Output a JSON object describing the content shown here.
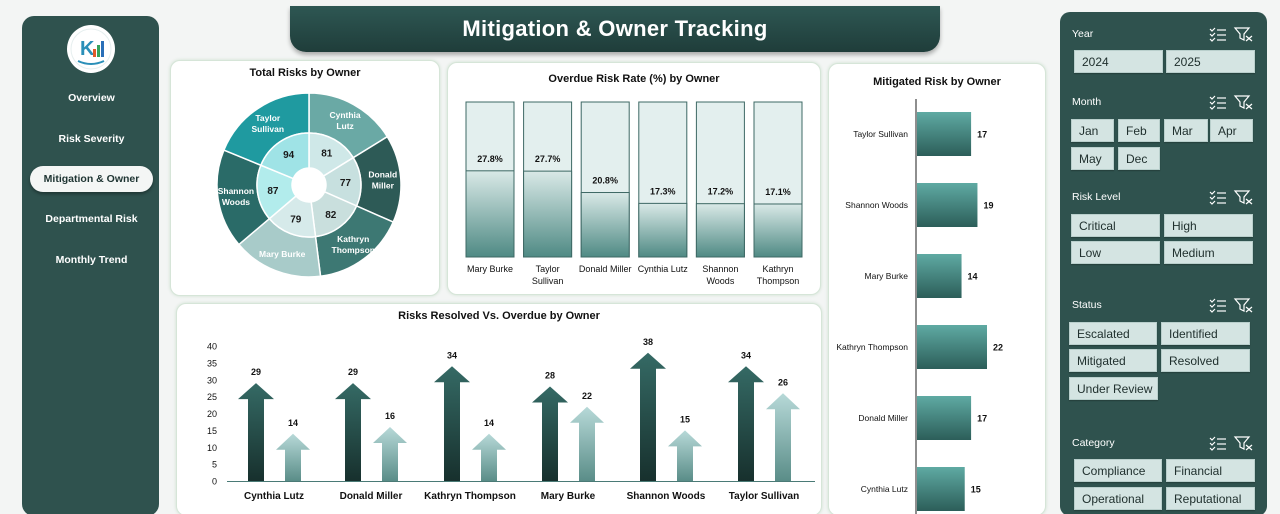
{
  "nav": {
    "items": [
      "Overview",
      "Risk Severity",
      "Mitigation & Owner",
      "Departmental Risk",
      "Monthly Trend"
    ],
    "active": "Mitigation & Owner"
  },
  "header": {
    "title": "Mitigation & Owner Tracking"
  },
  "panels": {
    "total_risks": "Total Risks by Owner",
    "overdue_rate": "Overdue Risk Rate (%) by Owner",
    "mitigated": "Mitigated Risk by Owner",
    "resolved_vs_overdue": "Risks Resolved Vs. Overdue by Owner"
  },
  "filters": {
    "year": {
      "label": "Year",
      "options": [
        "2024",
        "2025"
      ]
    },
    "month": {
      "label": "Month",
      "options": [
        "Jan",
        "Feb",
        "Mar",
        "Apr",
        "May",
        "Dec"
      ]
    },
    "risk_level": {
      "label": "Risk Level",
      "options": [
        "Critical",
        "High",
        "Low",
        "Medium"
      ]
    },
    "status": {
      "label": "Status",
      "options": [
        "Escalated",
        "Identified",
        "Mitigated",
        "Resolved",
        "Under Review"
      ]
    },
    "category": {
      "label": "Category",
      "options": [
        "Compliance",
        "Financial",
        "Operational",
        "Reputational"
      ]
    }
  },
  "colors": {
    "sidebar": "#2f524e",
    "accent_dark": "#1f3d3a",
    "teal": "#4a9690",
    "teal_light": "#9edfe2"
  },
  "icons": [
    "logo-icon",
    "multi-select-icon",
    "clear-filter-icon"
  ],
  "chart_data": [
    {
      "type": "pie",
      "subtype": "sunburst",
      "title": "Total Risks by Owner",
      "categories": [
        "Cynthia Lutz",
        "Donald Miller",
        "Kathryn Thompson",
        "Mary Burke",
        "Shannon Woods",
        "Taylor Sullivan"
      ],
      "values": [
        81,
        77,
        82,
        79,
        87,
        94
      ],
      "outer_labels": [
        "Cynthia\nLutz",
        "Donald\nMiller",
        "Kathryn\nThompson",
        "Mary Burke",
        "Shannon\nWoods",
        "Taylor\nSullivan"
      ]
    },
    {
      "type": "bar",
      "title": "Overdue Risk Rate (%) by Owner",
      "categories": [
        "Mary Burke",
        "Taylor Sullivan",
        "Donald Miller",
        "Cynthia Lutz",
        "Shannon Woods",
        "Kathryn Thompson"
      ],
      "values": [
        27.8,
        27.7,
        20.8,
        17.3,
        17.2,
        17.1
      ],
      "labels": [
        "27.8%",
        "27.7%",
        "20.8%",
        "17.3%",
        "17.2%",
        "17.1%"
      ],
      "ylim": [
        0,
        100
      ]
    },
    {
      "type": "bar",
      "orientation": "horizontal",
      "title": "Mitigated Risk by Owner",
      "categories": [
        "Taylor Sullivan",
        "Shannon Woods",
        "Mary Burke",
        "Kathryn Thompson",
        "Donald Miller",
        "Cynthia Lutz"
      ],
      "values": [
        17,
        19,
        14,
        22,
        17,
        15
      ],
      "xlim": [
        0,
        25
      ]
    },
    {
      "type": "bar",
      "title": "Risks Resolved Vs. Overdue by Owner",
      "categories": [
        "Cynthia Lutz",
        "Donald Miller",
        "Kathryn Thompson",
        "Mary Burke",
        "Shannon Woods",
        "Taylor Sullivan"
      ],
      "series": [
        {
          "values": [
            29,
            29,
            34,
            28,
            38,
            34
          ]
        },
        {
          "values": [
            14,
            16,
            14,
            22,
            15,
            26
          ]
        }
      ],
      "ylim": [
        0,
        40
      ],
      "yticks": [
        "0",
        "5",
        "10",
        "15",
        "20",
        "25",
        "30",
        "35",
        "40"
      ]
    }
  ]
}
